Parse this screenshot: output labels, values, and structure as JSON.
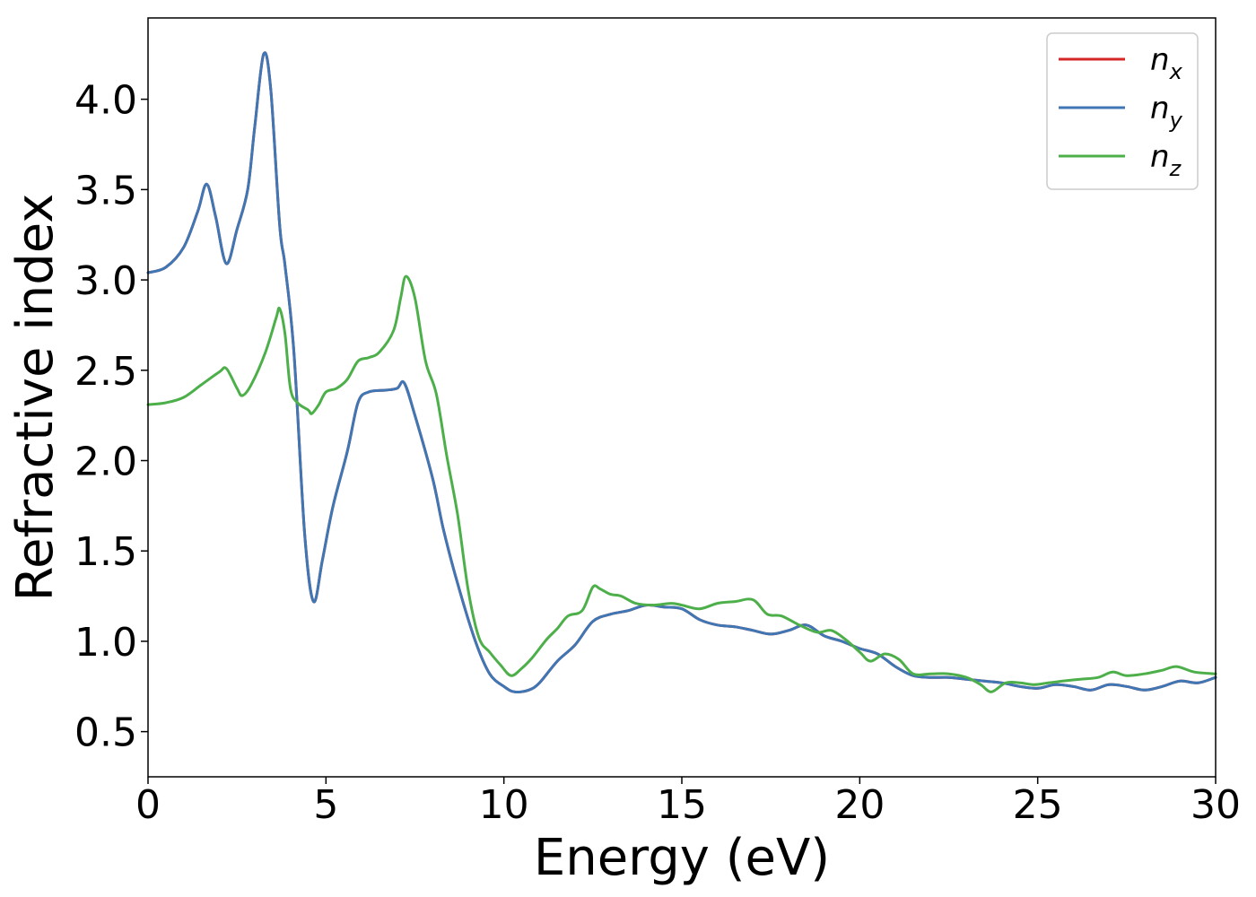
{
  "chart_data": {
    "type": "line",
    "title": "",
    "xlabel": "Energy (eV)",
    "ylabel": "Refractive index",
    "xlim": [
      0,
      30
    ],
    "ylim": [
      0.25,
      4.45
    ],
    "xticks": [
      0,
      5,
      10,
      15,
      20,
      25,
      30
    ],
    "yticks": [
      0.5,
      1.0,
      1.5,
      2.0,
      2.5,
      3.0,
      3.5,
      4.0
    ],
    "grid": false,
    "legend_position": "top-right",
    "series": [
      {
        "name": "n",
        "subscript": "x",
        "color": "#d62728",
        "points": [
          [
            0,
            3.04
          ],
          [
            0.5,
            3.07
          ],
          [
            1.0,
            3.18
          ],
          [
            1.4,
            3.38
          ],
          [
            1.65,
            3.53
          ],
          [
            1.9,
            3.35
          ],
          [
            2.2,
            3.09
          ],
          [
            2.5,
            3.28
          ],
          [
            2.8,
            3.5
          ],
          [
            3.0,
            3.85
          ],
          [
            3.25,
            4.25
          ],
          [
            3.45,
            4.05
          ],
          [
            3.7,
            3.3
          ],
          [
            3.85,
            3.08
          ],
          [
            4.1,
            2.6
          ],
          [
            4.4,
            1.6
          ],
          [
            4.65,
            1.22
          ],
          [
            4.9,
            1.45
          ],
          [
            5.2,
            1.75
          ],
          [
            5.6,
            2.05
          ],
          [
            5.9,
            2.32
          ],
          [
            6.2,
            2.38
          ],
          [
            6.7,
            2.39
          ],
          [
            7.0,
            2.4
          ],
          [
            7.2,
            2.43
          ],
          [
            7.5,
            2.25
          ],
          [
            8.0,
            1.9
          ],
          [
            8.3,
            1.62
          ],
          [
            8.7,
            1.32
          ],
          [
            9.2,
            1.0
          ],
          [
            9.6,
            0.82
          ],
          [
            10.0,
            0.75
          ],
          [
            10.3,
            0.72
          ],
          [
            10.7,
            0.73
          ],
          [
            11.0,
            0.77
          ],
          [
            11.5,
            0.89
          ],
          [
            12.0,
            0.98
          ],
          [
            12.5,
            1.11
          ],
          [
            13.0,
            1.15
          ],
          [
            13.5,
            1.17
          ],
          [
            14.0,
            1.2
          ],
          [
            14.5,
            1.19
          ],
          [
            15.0,
            1.18
          ],
          [
            15.5,
            1.12
          ],
          [
            16.0,
            1.09
          ],
          [
            16.5,
            1.08
          ],
          [
            17.0,
            1.06
          ],
          [
            17.5,
            1.04
          ],
          [
            18.0,
            1.06
          ],
          [
            18.5,
            1.09
          ],
          [
            19.0,
            1.03
          ],
          [
            19.5,
            1.0
          ],
          [
            20.0,
            0.96
          ],
          [
            20.5,
            0.93
          ],
          [
            21.0,
            0.86
          ],
          [
            21.5,
            0.81
          ],
          [
            22.0,
            0.8
          ],
          [
            22.5,
            0.8
          ],
          [
            23.0,
            0.79
          ],
          [
            23.5,
            0.78
          ],
          [
            24.0,
            0.77
          ],
          [
            24.5,
            0.75
          ],
          [
            25.0,
            0.74
          ],
          [
            25.5,
            0.76
          ],
          [
            26.0,
            0.75
          ],
          [
            26.5,
            0.73
          ],
          [
            27.0,
            0.76
          ],
          [
            27.5,
            0.75
          ],
          [
            28.0,
            0.73
          ],
          [
            28.5,
            0.75
          ],
          [
            29.0,
            0.78
          ],
          [
            29.5,
            0.77
          ],
          [
            30.0,
            0.8
          ]
        ]
      },
      {
        "name": "n",
        "subscript": "y",
        "color": "#3f76b4",
        "points": [
          [
            0,
            3.04
          ],
          [
            0.5,
            3.07
          ],
          [
            1.0,
            3.18
          ],
          [
            1.4,
            3.38
          ],
          [
            1.65,
            3.53
          ],
          [
            1.9,
            3.35
          ],
          [
            2.2,
            3.09
          ],
          [
            2.5,
            3.28
          ],
          [
            2.8,
            3.5
          ],
          [
            3.0,
            3.85
          ],
          [
            3.25,
            4.25
          ],
          [
            3.45,
            4.05
          ],
          [
            3.7,
            3.3
          ],
          [
            3.85,
            3.08
          ],
          [
            4.1,
            2.6
          ],
          [
            4.4,
            1.6
          ],
          [
            4.65,
            1.22
          ],
          [
            4.9,
            1.45
          ],
          [
            5.2,
            1.75
          ],
          [
            5.6,
            2.05
          ],
          [
            5.9,
            2.32
          ],
          [
            6.2,
            2.38
          ],
          [
            6.7,
            2.39
          ],
          [
            7.0,
            2.4
          ],
          [
            7.2,
            2.43
          ],
          [
            7.5,
            2.25
          ],
          [
            8.0,
            1.9
          ],
          [
            8.3,
            1.62
          ],
          [
            8.7,
            1.32
          ],
          [
            9.2,
            1.0
          ],
          [
            9.6,
            0.82
          ],
          [
            10.0,
            0.75
          ],
          [
            10.3,
            0.72
          ],
          [
            10.7,
            0.73
          ],
          [
            11.0,
            0.77
          ],
          [
            11.5,
            0.89
          ],
          [
            12.0,
            0.98
          ],
          [
            12.5,
            1.11
          ],
          [
            13.0,
            1.15
          ],
          [
            13.5,
            1.17
          ],
          [
            14.0,
            1.2
          ],
          [
            14.5,
            1.19
          ],
          [
            15.0,
            1.18
          ],
          [
            15.5,
            1.12
          ],
          [
            16.0,
            1.09
          ],
          [
            16.5,
            1.08
          ],
          [
            17.0,
            1.06
          ],
          [
            17.5,
            1.04
          ],
          [
            18.0,
            1.06
          ],
          [
            18.5,
            1.09
          ],
          [
            19.0,
            1.03
          ],
          [
            19.5,
            1.0
          ],
          [
            20.0,
            0.96
          ],
          [
            20.5,
            0.93
          ],
          [
            21.0,
            0.86
          ],
          [
            21.5,
            0.81
          ],
          [
            22.0,
            0.8
          ],
          [
            22.5,
            0.8
          ],
          [
            23.0,
            0.79
          ],
          [
            23.5,
            0.78
          ],
          [
            24.0,
            0.77
          ],
          [
            24.5,
            0.75
          ],
          [
            25.0,
            0.74
          ],
          [
            25.5,
            0.76
          ],
          [
            26.0,
            0.75
          ],
          [
            26.5,
            0.73
          ],
          [
            27.0,
            0.76
          ],
          [
            27.5,
            0.75
          ],
          [
            28.0,
            0.73
          ],
          [
            28.5,
            0.75
          ],
          [
            29.0,
            0.78
          ],
          [
            29.5,
            0.77
          ],
          [
            30.0,
            0.8
          ]
        ]
      },
      {
        "name": "n",
        "subscript": "z",
        "color": "#4daf4a",
        "points": [
          [
            0,
            2.31
          ],
          [
            0.5,
            2.32
          ],
          [
            1.0,
            2.35
          ],
          [
            1.5,
            2.42
          ],
          [
            2.0,
            2.49
          ],
          [
            2.2,
            2.51
          ],
          [
            2.5,
            2.4
          ],
          [
            2.65,
            2.36
          ],
          [
            2.9,
            2.42
          ],
          [
            3.3,
            2.6
          ],
          [
            3.6,
            2.79
          ],
          [
            3.7,
            2.84
          ],
          [
            3.85,
            2.7
          ],
          [
            4.0,
            2.4
          ],
          [
            4.2,
            2.32
          ],
          [
            4.5,
            2.28
          ],
          [
            4.6,
            2.26
          ],
          [
            4.8,
            2.31
          ],
          [
            5.0,
            2.38
          ],
          [
            5.3,
            2.4
          ],
          [
            5.6,
            2.45
          ],
          [
            5.9,
            2.55
          ],
          [
            6.2,
            2.57
          ],
          [
            6.5,
            2.6
          ],
          [
            6.9,
            2.72
          ],
          [
            7.1,
            2.9
          ],
          [
            7.25,
            3.02
          ],
          [
            7.5,
            2.9
          ],
          [
            7.8,
            2.55
          ],
          [
            8.1,
            2.37
          ],
          [
            8.4,
            2.02
          ],
          [
            8.7,
            1.7
          ],
          [
            9.0,
            1.28
          ],
          [
            9.3,
            1.02
          ],
          [
            9.6,
            0.94
          ],
          [
            9.9,
            0.87
          ],
          [
            10.2,
            0.81
          ],
          [
            10.5,
            0.85
          ],
          [
            10.8,
            0.91
          ],
          [
            11.2,
            1.01
          ],
          [
            11.5,
            1.07
          ],
          [
            11.8,
            1.14
          ],
          [
            12.2,
            1.17
          ],
          [
            12.5,
            1.3
          ],
          [
            12.7,
            1.29
          ],
          [
            13.0,
            1.26
          ],
          [
            13.3,
            1.25
          ],
          [
            13.7,
            1.21
          ],
          [
            14.2,
            1.2
          ],
          [
            14.7,
            1.21
          ],
          [
            15.0,
            1.2
          ],
          [
            15.5,
            1.18
          ],
          [
            16.0,
            1.21
          ],
          [
            16.5,
            1.22
          ],
          [
            17.0,
            1.23
          ],
          [
            17.4,
            1.15
          ],
          [
            17.8,
            1.14
          ],
          [
            18.3,
            1.09
          ],
          [
            18.8,
            1.05
          ],
          [
            19.2,
            1.06
          ],
          [
            19.6,
            1.01
          ],
          [
            20.0,
            0.94
          ],
          [
            20.3,
            0.89
          ],
          [
            20.7,
            0.93
          ],
          [
            21.1,
            0.9
          ],
          [
            21.5,
            0.82
          ],
          [
            22.0,
            0.82
          ],
          [
            22.5,
            0.82
          ],
          [
            23.0,
            0.8
          ],
          [
            23.4,
            0.76
          ],
          [
            23.7,
            0.72
          ],
          [
            24.1,
            0.77
          ],
          [
            24.5,
            0.77
          ],
          [
            24.9,
            0.76
          ],
          [
            25.3,
            0.77
          ],
          [
            25.7,
            0.78
          ],
          [
            26.2,
            0.79
          ],
          [
            26.7,
            0.8
          ],
          [
            27.1,
            0.83
          ],
          [
            27.5,
            0.81
          ],
          [
            28.0,
            0.82
          ],
          [
            28.5,
            0.84
          ],
          [
            28.9,
            0.86
          ],
          [
            29.4,
            0.83
          ],
          [
            30.0,
            0.82
          ]
        ]
      }
    ]
  }
}
